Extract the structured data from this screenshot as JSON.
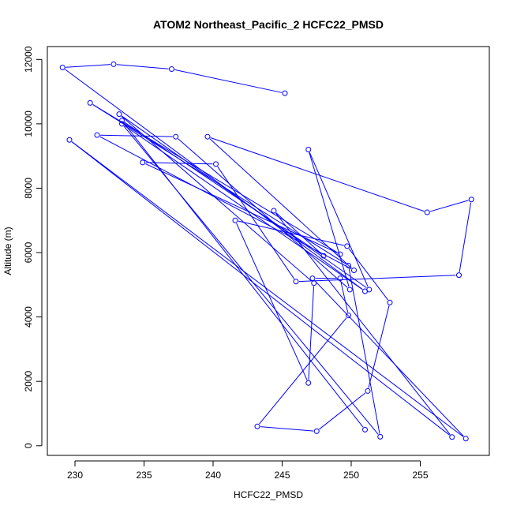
{
  "chart_data": {
    "type": "line",
    "title": "ATOM2 Northeast_Pacific_2 HCFC22_PMSD",
    "xlabel": "HCFC22_PMSD",
    "ylabel": "Altitude (m)",
    "xlim": [
      228,
      260
    ],
    "ylim": [
      -300,
      12400
    ],
    "xticks": [
      230,
      235,
      240,
      245,
      250,
      255
    ],
    "yticks": [
      0,
      2000,
      4000,
      6000,
      8000,
      10000,
      12000
    ],
    "grid": false,
    "legend": "none",
    "series_color": "#0000ff",
    "series": [
      {
        "points": [
          [
            245.2,
            10950
          ],
          [
            237.0,
            11700
          ],
          [
            232.8,
            11850
          ],
          [
            229.1,
            11750
          ],
          [
            251.0,
            4800
          ],
          [
            233.4,
            10000
          ],
          [
            252.1,
            280
          ],
          [
            249.8,
            5600
          ],
          [
            231.1,
            10650
          ],
          [
            249.2,
            5950
          ],
          [
            234.9,
            8800
          ],
          [
            240.2,
            8750
          ],
          [
            246.0,
            5100
          ],
          [
            257.8,
            5300
          ],
          [
            258.7,
            7650
          ],
          [
            255.5,
            7250
          ],
          [
            239.6,
            9600
          ],
          [
            250.2,
            5450
          ],
          [
            231.6,
            9650
          ],
          [
            237.3,
            9600
          ],
          [
            249.9,
            4850
          ],
          [
            246.9,
            9200
          ],
          [
            251.3,
            4850
          ],
          [
            233.2,
            10300
          ],
          [
            247.3,
            5050
          ],
          [
            246.9,
            1950
          ],
          [
            241.6,
            7000
          ],
          [
            249.7,
            6200
          ],
          [
            252.8,
            4450
          ],
          [
            251.2,
            1700
          ],
          [
            247.5,
            450
          ],
          [
            243.2,
            600
          ],
          [
            249.8,
            4050
          ],
          [
            249.2,
            5200
          ],
          [
            247.2,
            5200
          ],
          [
            258.3,
            220
          ],
          [
            229.6,
            9500
          ],
          [
            257.3,
            270
          ],
          [
            244.4,
            7300
          ],
          [
            248.0,
            5900
          ],
          [
            233.4,
            10100
          ],
          [
            251.0,
            500
          ]
        ]
      }
    ]
  }
}
